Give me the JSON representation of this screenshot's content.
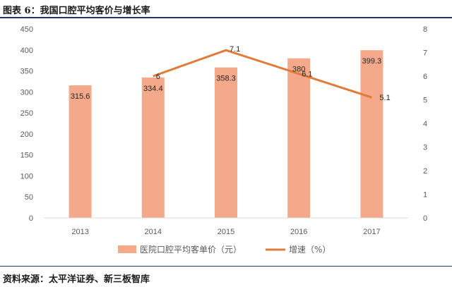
{
  "header": {
    "title": "图表 6：我国口腔平均客价与增长率"
  },
  "footer": {
    "source": "资料来源：太平洋证券、新三板智库"
  },
  "chart_data": {
    "type": "bar",
    "categories": [
      "2013",
      "2014",
      "2015",
      "2016",
      "2017"
    ],
    "series": [
      {
        "name": "医院口腔平均客单价（元）",
        "type": "bar",
        "axis": "left",
        "values": [
          315.6,
          334.4,
          358.3,
          380,
          399.3
        ],
        "color": "#f4a98a"
      },
      {
        "name": "增速（%）",
        "type": "line",
        "axis": "right",
        "values": [
          null,
          6,
          7.1,
          6.1,
          5.1
        ],
        "color": "#e07b39"
      }
    ],
    "ylim_left": [
      0,
      450
    ],
    "yticks_left": [
      "0",
      "50",
      "100",
      "150",
      "200",
      "250",
      "300",
      "350",
      "400",
      "450"
    ],
    "ylim_right": [
      0,
      8
    ],
    "yticks_right": [
      "0",
      "1",
      "2",
      "3",
      "4",
      "5",
      "6",
      "7",
      "8"
    ],
    "bar_labels": [
      "315.6",
      "334.4",
      "358.3",
      "380",
      "399.3"
    ],
    "line_labels": [
      "",
      "6",
      "7.1",
      "6.1",
      "5.1"
    ],
    "grid": false,
    "legend_position": "bottom"
  }
}
